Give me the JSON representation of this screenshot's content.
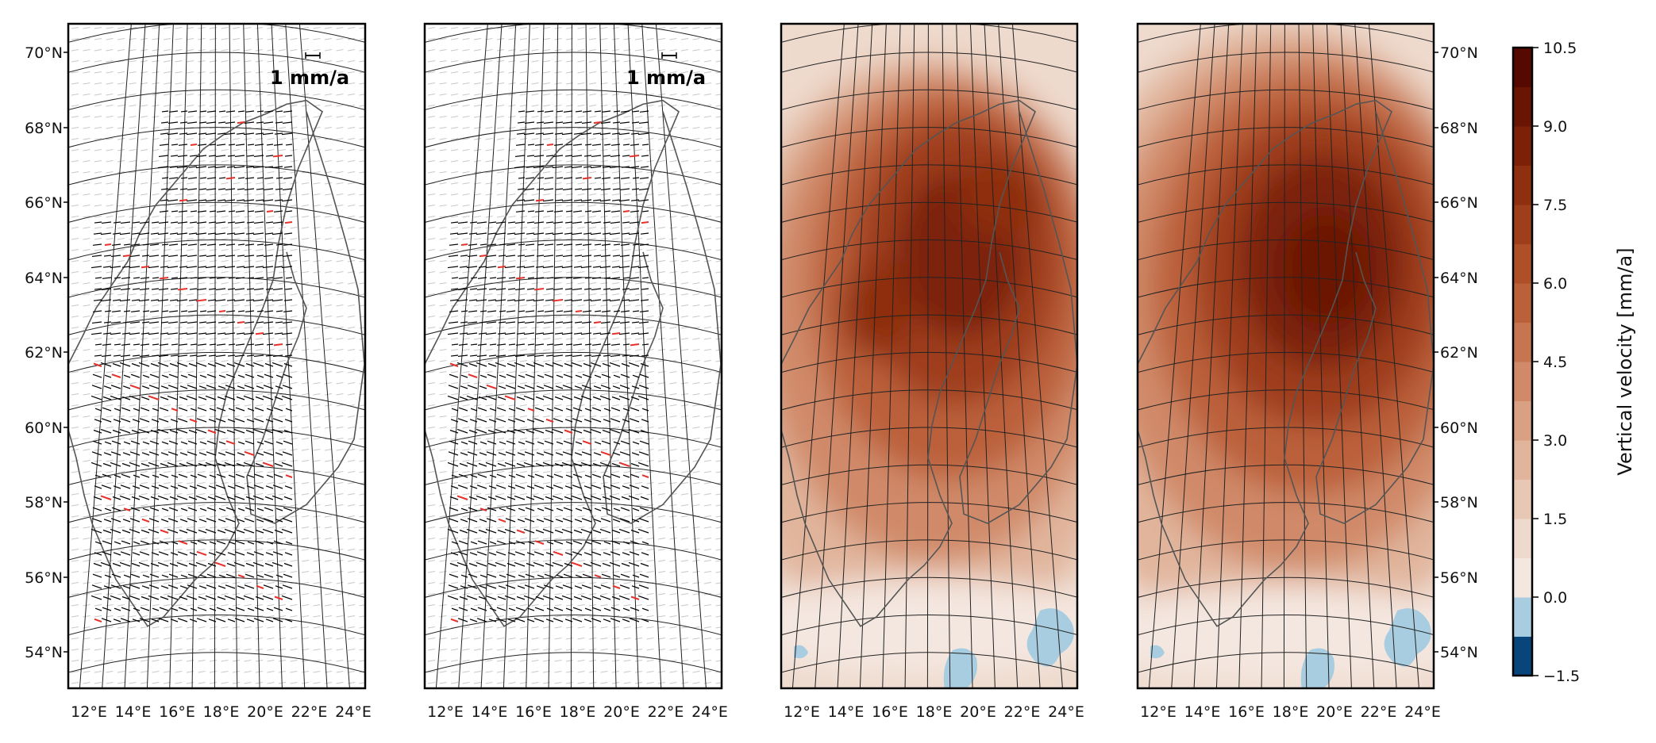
{
  "panels": [
    {
      "id": "a",
      "kind": "vector",
      "scale_label": "1 mm/a"
    },
    {
      "id": "b",
      "kind": "vector",
      "scale_label": "1 mm/a"
    },
    {
      "id": "c",
      "kind": "contour"
    },
    {
      "id": "d",
      "kind": "contour"
    }
  ],
  "lat_labels": [
    "70°N",
    "68°N",
    "66°N",
    "64°N",
    "62°N",
    "60°N",
    "58°N",
    "56°N",
    "54°N"
  ],
  "lon_labels": [
    "12°E",
    "14°E",
    "16°E",
    "18°E",
    "20°E",
    "22°E",
    "24°E"
  ],
  "colorbar": {
    "label": "Vertical velocity [mm/a]",
    "min": -1.5,
    "max": 10.5,
    "step": 0.75,
    "ticks": [
      "10.5",
      "9.0",
      "7.5",
      "6.0",
      "4.5",
      "3.0",
      "1.5",
      "0.0",
      "−1.5"
    ],
    "colors": [
      "#08457a",
      "#a9cde0",
      "#f4e7e0",
      "#eedacd",
      "#e8c7b4",
      "#e1b59c",
      "#d9a083",
      "#d08a69",
      "#c67550",
      "#bb613a",
      "#ae4f28",
      "#9f3e1a",
      "#8e2f10",
      "#7c2108",
      "#6a1404",
      "#550901"
    ]
  },
  "colors": {
    "vector_arrow": "#000000",
    "vector_highlight": "#e8302a",
    "grid": "#222222",
    "coast": "#555555",
    "frame": "#000000"
  }
}
